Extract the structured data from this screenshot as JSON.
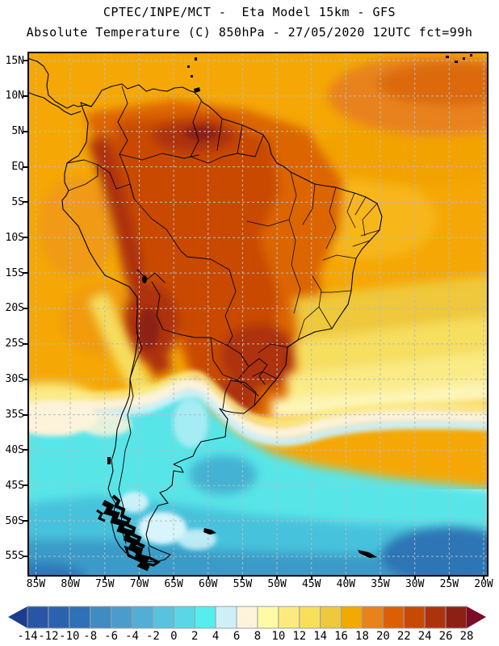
{
  "title": {
    "line1": "CPTEC/INPE/MCT -  Eta Model 15km - GFS",
    "line2": "Absolute Temperature (C) 850hPa - 27/05/2020 12UTC fct=99h"
  },
  "map": {
    "lat_ticks": [
      "15N",
      "10N",
      "5N",
      "EQ",
      "5S",
      "10S",
      "15S",
      "20S",
      "25S",
      "30S",
      "35S",
      "40S",
      "45S",
      "50S",
      "55S"
    ],
    "lon_ticks": [
      "85W",
      "80W",
      "75W",
      "70W",
      "65W",
      "60W",
      "55W",
      "50W",
      "45W",
      "40W",
      "35W",
      "30W",
      "25W",
      "20W"
    ],
    "grid_color": "#B4BCC2",
    "border_color": "#000000"
  },
  "colorbar": {
    "tick_labels": [
      "-14",
      "-12",
      "-10",
      "-8",
      "-6",
      "-4",
      "-2",
      "0",
      "2",
      "4",
      "6",
      "8",
      "10",
      "12",
      "14",
      "16",
      "18",
      "20",
      "22",
      "24",
      "26",
      "28"
    ],
    "cell_colors": [
      "#2A55A4",
      "#2B62AE",
      "#2F70B6",
      "#3E8CC2",
      "#4B9CCC",
      "#53AED6",
      "#59C2DE",
      "#5BD6E6",
      "#55EDED",
      "#CDEFF8",
      "#FCF3DA",
      "#FEFAA6",
      "#FBEB7F",
      "#F7DF5A",
      "#EEC83D",
      "#F2A900",
      "#E8821A",
      "#DC5F05",
      "#C74A04",
      "#AD330C",
      "#8C2015"
    ],
    "below_color": "#1D3C8C",
    "above_color": "#7C0B28",
    "outline_color": "#9AA0A6"
  },
  "chart_data": {
    "type": "heatmap",
    "title": "CPTEC/INPE/MCT -  Eta Model 15km - GFS",
    "subtitle": "Absolute Temperature (C) 850hPa - 27/05/2020 12UTC fct=99h",
    "variable": "Absolute Temperature",
    "units": "C",
    "level": "850hPa",
    "model": "Eta Model 15km",
    "boundary_model": "GFS",
    "source": "CPTEC/INPE/MCT",
    "init_time": "27/05/2020 12UTC",
    "forecast_hour": "fct=99h",
    "xlabel_ticks": [
      "85W",
      "80W",
      "75W",
      "70W",
      "65W",
      "60W",
      "55W",
      "50W",
      "45W",
      "40W",
      "35W",
      "30W",
      "25W",
      "20W"
    ],
    "ylabel_ticks": [
      "15N",
      "10N",
      "5N",
      "EQ",
      "5S",
      "10S",
      "15S",
      "20S",
      "25S",
      "30S",
      "35S",
      "40S",
      "45S",
      "50S",
      "55S"
    ],
    "colorbar": {
      "min": -14,
      "max": 28,
      "step": 2,
      "units": "C"
    },
    "sampled_field": {
      "note": "approximate 850hPa temperature (C) read from shading",
      "lats": [
        "15N",
        "5N",
        "5S",
        "15S",
        "25S",
        "35S",
        "45S",
        "55S"
      ],
      "lons": [
        "85W",
        "75W",
        "65W",
        "55W",
        "45W",
        "35W",
        "25W"
      ],
      "values": [
        [
          21,
          21,
          19,
          17,
          18,
          18,
          21
        ],
        [
          22,
          24,
          24,
          20,
          18,
          17,
          17
        ],
        [
          20,
          24,
          23,
          22,
          20,
          18,
          16
        ],
        [
          13,
          18,
          25,
          23,
          21,
          16,
          14
        ],
        [
          9,
          11,
          17,
          21,
          13,
          11,
          10
        ],
        [
          7,
          5,
          3,
          6,
          7,
          8,
          9
        ],
        [
          2,
          1,
          1,
          1,
          2,
          3,
          3
        ],
        [
          0,
          -1,
          -1,
          -3,
          -5,
          -7,
          -8
        ]
      ]
    }
  }
}
